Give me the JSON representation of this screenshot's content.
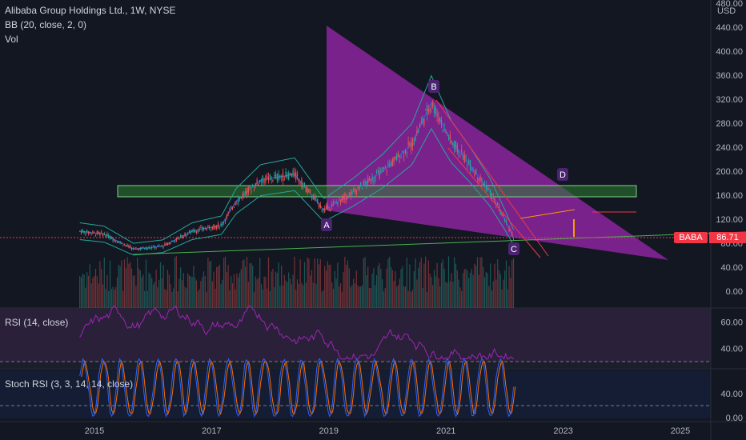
{
  "header": {
    "symbol_title": "Alibaba Group Holdings Ltd., 1W, NYSE",
    "indicator_bb": "BB (20, close, 2, 0)",
    "indicator_vol": "Vol"
  },
  "price_axis": {
    "currency": "USD",
    "ticks": [
      "480.00",
      "440.00",
      "400.00",
      "360.00",
      "320.00",
      "280.00",
      "240.00",
      "200.00",
      "160.00",
      "120.00",
      "80.00",
      "40.00",
      "0.00"
    ]
  },
  "ticker_badge": {
    "symbol": "BABA",
    "price": "86.71",
    "color": "#f23645"
  },
  "rsi_panel": {
    "title": "RSI (14, close)",
    "ticks": [
      "60.00",
      "40.00"
    ]
  },
  "stoch_panel": {
    "title": "Stoch RSI (3, 3, 14, 14, close)",
    "ticks": [
      "40.00",
      "0.00"
    ]
  },
  "time_axis": {
    "labels": [
      "2015",
      "2017",
      "2019",
      "2021",
      "2023",
      "2025"
    ]
  },
  "pattern_labels": [
    "A",
    "B",
    "C",
    "D"
  ],
  "colors": {
    "background": "#131722",
    "triangle": "#9c27b0",
    "zone": "#2e7d32",
    "up": "#26a69a",
    "down": "#ef5350",
    "bb_line": "#26a69a",
    "rsi_line": "#9c27b0",
    "stoch_k": "#2962ff",
    "stoch_d": "#ff6d00"
  },
  "chart_data": {
    "type": "line",
    "title": "Alibaba Group Holdings Ltd., 1W, NYSE",
    "x": [
      "2014-10",
      "2015-03",
      "2015-09",
      "2016-03",
      "2016-09",
      "2017-03",
      "2017-06",
      "2017-11",
      "2018-06",
      "2018-12",
      "2019-06",
      "2019-12",
      "2020-06",
      "2020-10",
      "2021-02",
      "2021-06",
      "2021-10",
      "2022-01",
      "2022-03"
    ],
    "series": [
      {
        "name": "BABA",
        "values": [
          100,
          95,
          70,
          75,
          100,
          110,
          150,
          185,
          195,
          135,
          165,
          200,
          245,
          315,
          250,
          210,
          165,
          120,
          86.71
        ]
      }
    ],
    "ylim": [
      0,
      480
    ],
    "y_unit": "USD",
    "last_price": 86.71,
    "annotations": [
      "A",
      "B",
      "C",
      "D"
    ]
  }
}
